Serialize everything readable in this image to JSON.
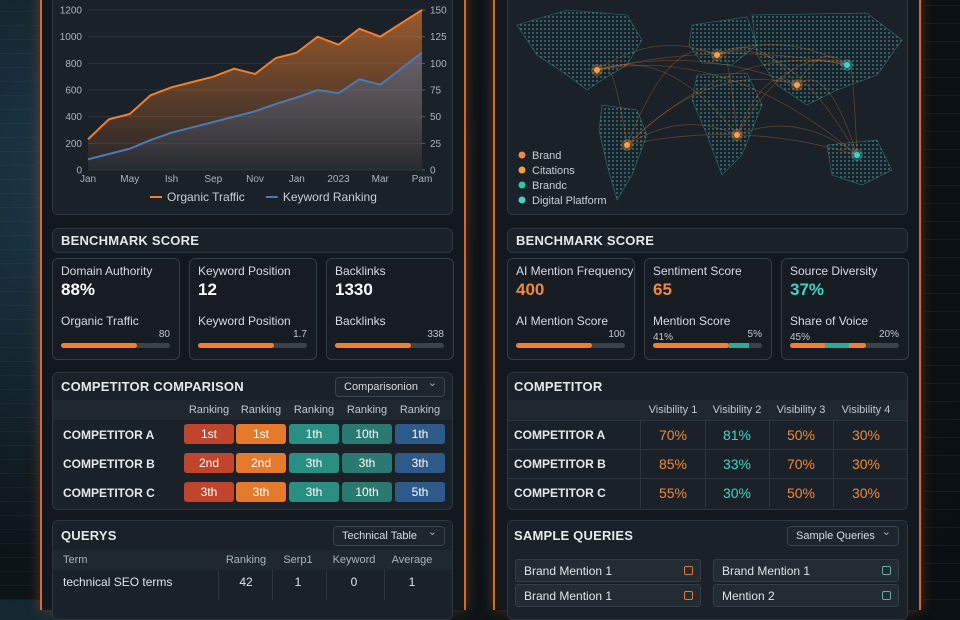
{
  "left": {
    "chart": {
      "type": "line",
      "x": [
        "Jan",
        null,
        "May",
        null,
        "Ish",
        null,
        "Sep",
        null,
        "Nov",
        null,
        "Jan",
        null,
        "2023",
        null,
        "Mar",
        null,
        "Pam"
      ],
      "series": [
        {
          "name": "Organic Traffic",
          "color": "#f07f2e",
          "values": [
            230,
            380,
            420,
            560,
            620,
            660,
            700,
            760,
            720,
            840,
            880,
            1000,
            940,
            1060,
            1000,
            1100,
            1200
          ]
        },
        {
          "name": "Keyword Ranking",
          "color": "#4a7bb7",
          "axis": "y2",
          "values": [
            10,
            15,
            20,
            28,
            35,
            40,
            45,
            50,
            55,
            62,
            68,
            75,
            72,
            85,
            80,
            95,
            110
          ]
        }
      ],
      "ylim": [
        0,
        1200
      ],
      "yticks": [
        0,
        200,
        400,
        600,
        800,
        1000,
        1200
      ],
      "y2lim": [
        0,
        150
      ],
      "y2ticks": [
        0,
        25,
        50,
        75,
        100,
        125,
        150
      ],
      "grid": true
    },
    "benchmark": {
      "title": "BENCHMARK SCORE",
      "cards": [
        {
          "label": "Domain Authority",
          "value": "88%",
          "sub_label": "Organic Traffic",
          "sub_values": [
            "80"
          ]
        },
        {
          "label": "Keyword Position",
          "value": "12",
          "sub_label": "Keyword Position",
          "sub_values": [
            "1.7"
          ]
        },
        {
          "label": "Backlinks",
          "value": "1330",
          "sub_label": "Backlinks",
          "sub_values": [
            "338"
          ]
        }
      ]
    },
    "comparison": {
      "title": "COMPETITOR COMPARISON",
      "dropdown": "Comparisonion",
      "columns": [
        "Ranking",
        "Ranking",
        "Ranking",
        "Ranking",
        "Ranking"
      ],
      "rows": [
        {
          "name": "COMPETITOR A",
          "cells": [
            "1st",
            "1st",
            "1th",
            "10th",
            "1th"
          ]
        },
        {
          "name": "COMPETITOR B",
          "cells": [
            "2nd",
            "2nd",
            "3th",
            "3th",
            "3th"
          ]
        },
        {
          "name": "COMPETITOR C",
          "cells": [
            "3th",
            "3th",
            "3th",
            "10th",
            "5th"
          ]
        }
      ]
    },
    "queries": {
      "title": "QUERYS",
      "dropdown": "Technical Table",
      "columns": [
        "Term",
        "Ranking",
        "Serp1",
        "Keyword",
        "Average"
      ],
      "rows": [
        [
          "technical SEO terms",
          42,
          1,
          0,
          1
        ]
      ]
    }
  },
  "right": {
    "map": {
      "legend": [
        {
          "name": "Brand",
          "color": "#f08a3a"
        },
        {
          "name": "Citations",
          "color": "#f0a040"
        },
        {
          "name": "Brandc",
          "color": "#2fc4a8"
        },
        {
          "name": "Digital Platform",
          "color": "#3fd6c8"
        }
      ]
    },
    "benchmark": {
      "title": "BENCHMARK SCORE",
      "cards": [
        {
          "label": "AI Mention Frequency",
          "value": "400",
          "sub_label": "AI Mention Score",
          "sub_values": [
            "100"
          ]
        },
        {
          "label": "Sentiment Score",
          "value": "65",
          "sub_label": "Mention Score",
          "sub_values": [
            "41%",
            "5%"
          ]
        },
        {
          "label": "Source Diversity",
          "value": "37%",
          "sub_label": "Share of Voice",
          "sub_values": [
            "45%",
            "20%"
          ]
        }
      ]
    },
    "competitor": {
      "title": "COMPETITOR",
      "columns": [
        "Visibility 1",
        "Visibility 2",
        "Visibility 3",
        "Visibility 4"
      ],
      "rows": [
        {
          "name": "COMPETITOR A",
          "cells": [
            "70%",
            "81%",
            "50%",
            "30%"
          ]
        },
        {
          "name": "COMPETITOR B",
          "cells": [
            "85%",
            "33%",
            "70%",
            "30%"
          ]
        },
        {
          "name": "COMPETITOR C",
          "cells": [
            "55%",
            "30%",
            "50%",
            "30%"
          ]
        }
      ]
    },
    "samples": {
      "title": "SAMPLE QUERIES",
      "dropdown": "Sample Queries",
      "items": [
        "Brand Mention 1",
        "Brand Mention 1",
        "Brand Mention 1",
        "Mention 2"
      ]
    }
  }
}
